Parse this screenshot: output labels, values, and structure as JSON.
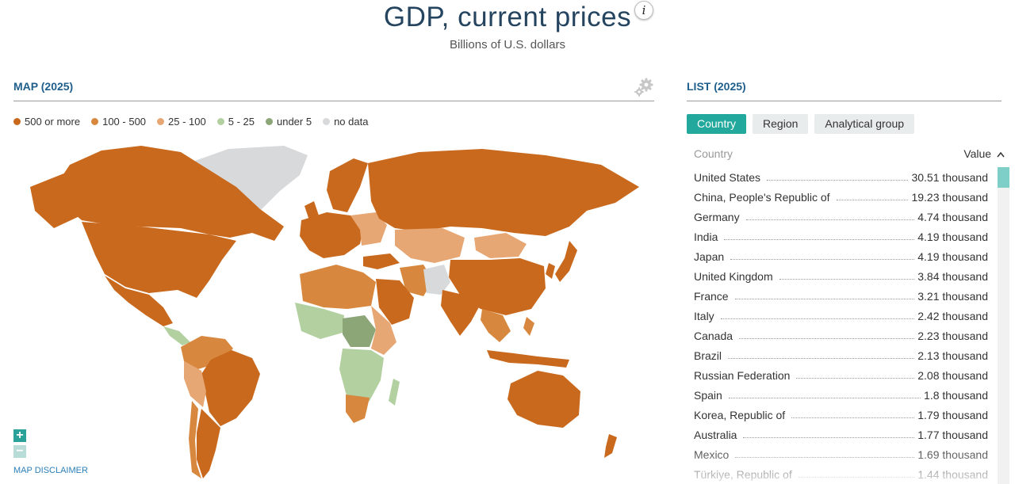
{
  "header": {
    "title": "GDP, current prices",
    "info_glyph": "i",
    "subtitle": "Billions of U.S. dollars"
  },
  "map_panel": {
    "heading": "MAP (2025)",
    "settings_icon": "gear-icon",
    "legend": [
      {
        "label": "500 or more",
        "color": "#c9691d"
      },
      {
        "label": "100 - 500",
        "color": "#d8883e"
      },
      {
        "label": "25 - 100",
        "color": "#e7a774"
      },
      {
        "label": "5 - 25",
        "color": "#b2d0a0"
      },
      {
        "label": "under 5",
        "color": "#8da678"
      },
      {
        "label": "no data",
        "color": "#d7d9db"
      }
    ],
    "zoom_in_label": "+",
    "zoom_out_label": "−",
    "disclaimer": "MAP DISCLAIMER"
  },
  "list_panel": {
    "heading": "LIST (2025)",
    "tabs": [
      {
        "label": "Country",
        "active": true
      },
      {
        "label": "Region",
        "active": false
      },
      {
        "label": "Analytical group",
        "active": false
      }
    ],
    "col_country": "Country",
    "col_value": "Value",
    "sort_icon": "chevron-up-icon",
    "rows": [
      {
        "country": "United States",
        "value": "30.51 thousand"
      },
      {
        "country": "China, People's Republic of",
        "value": "19.23 thousand"
      },
      {
        "country": "Germany",
        "value": "4.74 thousand"
      },
      {
        "country": "India",
        "value": "4.19 thousand"
      },
      {
        "country": "Japan",
        "value": "4.19 thousand"
      },
      {
        "country": "United Kingdom",
        "value": "3.84 thousand"
      },
      {
        "country": "France",
        "value": "3.21 thousand"
      },
      {
        "country": "Italy",
        "value": "2.42 thousand"
      },
      {
        "country": "Canada",
        "value": "2.23 thousand"
      },
      {
        "country": "Brazil",
        "value": "2.13 thousand"
      },
      {
        "country": "Russian Federation",
        "value": "2.08 thousand"
      },
      {
        "country": "Spain",
        "value": "1.8 thousand"
      },
      {
        "country": "Korea, Republic of",
        "value": "1.79 thousand"
      },
      {
        "country": "Australia",
        "value": "1.77 thousand"
      },
      {
        "country": "Mexico",
        "value": "1.69 thousand"
      },
      {
        "country": "Türkiye, Republic of",
        "value": "1.44 thousand"
      }
    ]
  }
}
